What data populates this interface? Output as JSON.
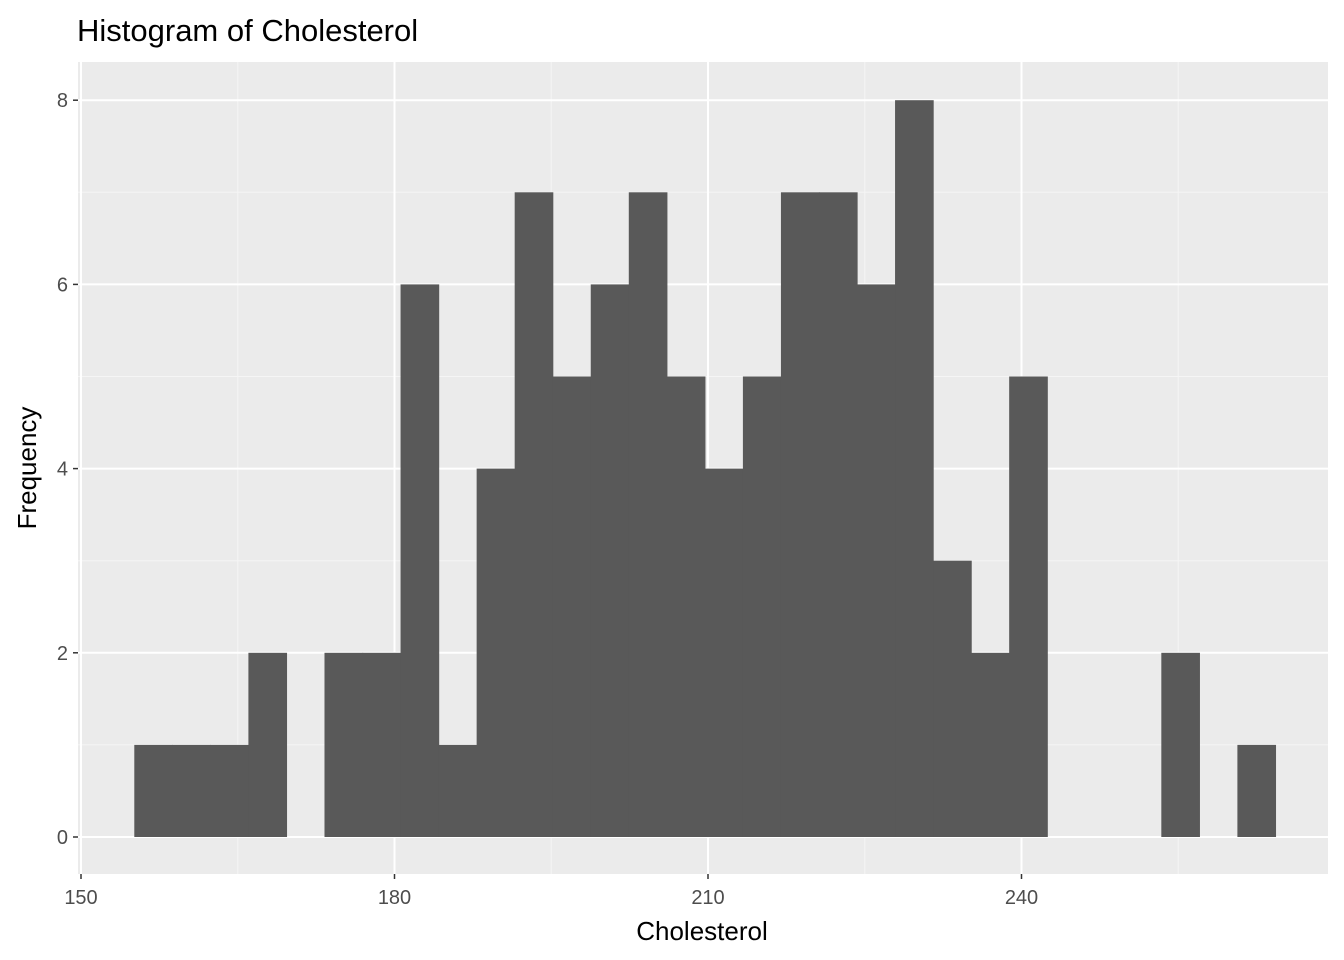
{
  "chart_data": {
    "type": "bar",
    "title": "Histogram of Cholesterol",
    "xlabel": "Cholesterol",
    "ylabel": "Frequency",
    "xlim": [
      150,
      271.4
    ],
    "ylim": [
      0,
      8
    ],
    "x_ticks": [
      150,
      180,
      210,
      240
    ],
    "y_ticks": [
      0,
      2,
      4,
      6,
      8
    ],
    "x_minor_ticks": [
      165,
      195,
      225,
      255
    ],
    "y_minor_ticks": [
      1,
      3,
      5,
      7
    ],
    "bin_width": 3.64,
    "bins": [
      {
        "x0": 155.1,
        "x1": 158.74,
        "count": 1
      },
      {
        "x0": 158.74,
        "x1": 162.38,
        "count": 1
      },
      {
        "x0": 162.38,
        "x1": 166.02,
        "count": 1
      },
      {
        "x0": 166.02,
        "x1": 169.66,
        "count": 2
      },
      {
        "x0": 169.66,
        "x1": 173.3,
        "count": 0
      },
      {
        "x0": 173.3,
        "x1": 176.94,
        "count": 2
      },
      {
        "x0": 176.94,
        "x1": 180.58,
        "count": 2
      },
      {
        "x0": 180.58,
        "x1": 184.22,
        "count": 6
      },
      {
        "x0": 184.22,
        "x1": 187.86,
        "count": 1
      },
      {
        "x0": 187.86,
        "x1": 191.5,
        "count": 4
      },
      {
        "x0": 191.5,
        "x1": 195.14,
        "count": 7
      },
      {
        "x0": 195.14,
        "x1": 198.78,
        "count": 5
      },
      {
        "x0": 198.78,
        "x1": 202.42,
        "count": 6
      },
      {
        "x0": 202.42,
        "x1": 206.06,
        "count": 7
      },
      {
        "x0": 206.06,
        "x1": 209.7,
        "count": 5
      },
      {
        "x0": 209.7,
        "x1": 213.34,
        "count": 4
      },
      {
        "x0": 213.34,
        "x1": 216.98,
        "count": 5
      },
      {
        "x0": 216.98,
        "x1": 220.62,
        "count": 7
      },
      {
        "x0": 220.62,
        "x1": 224.26,
        "count": 7
      },
      {
        "x0": 224.26,
        "x1": 227.9,
        "count": 6
      },
      {
        "x0": 227.9,
        "x1": 231.54,
        "count": 8
      },
      {
        "x0": 231.54,
        "x1": 235.18,
        "count": 3
      },
      {
        "x0": 235.18,
        "x1": 238.82,
        "count": 2
      },
      {
        "x0": 238.82,
        "x1": 242.46,
        "count": 5
      },
      {
        "x0": 242.46,
        "x1": 246.1,
        "count": 0
      },
      {
        "x0": 246.1,
        "x1": 249.74,
        "count": 0
      },
      {
        "x0": 249.74,
        "x1": 253.38,
        "count": 0
      },
      {
        "x0": 253.38,
        "x1": 257.02,
        "count": 2
      },
      {
        "x0": 257.02,
        "x1": 260.66,
        "count": 0
      },
      {
        "x0": 260.66,
        "x1": 264.3,
        "count": 1
      }
    ],
    "grid": true,
    "legend": "none",
    "colors": {
      "panel_background": "#ebebeb",
      "grid_major": "#ffffff",
      "grid_minor": "#f5f5f5",
      "bar_fill": "#595959",
      "tick_text": "#4d4d4d",
      "tick_mark": "#333333"
    }
  }
}
